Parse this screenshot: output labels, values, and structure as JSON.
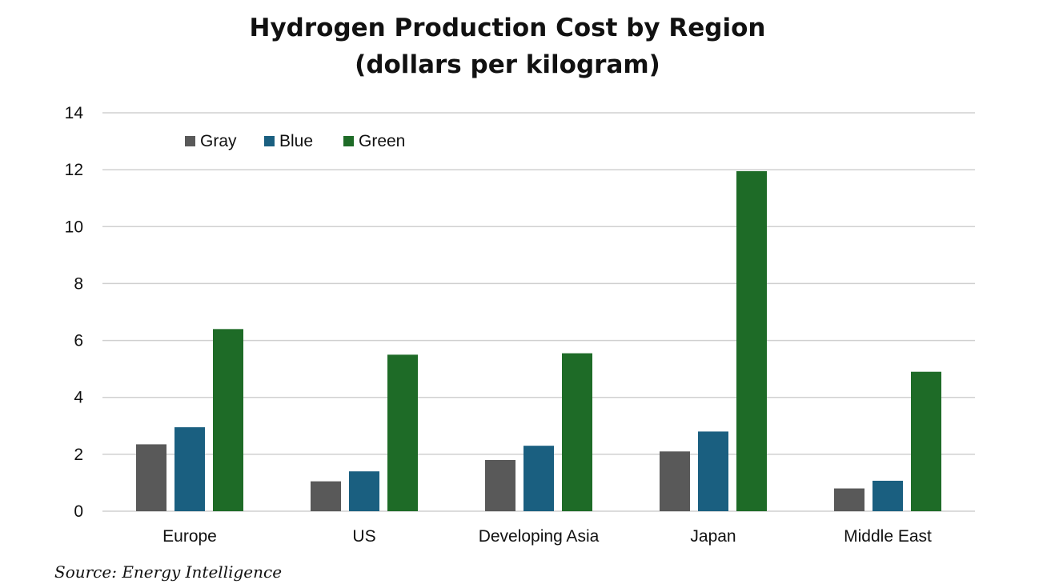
{
  "chart_data": {
    "type": "bar",
    "title": "Hydrogen Production Cost by Region",
    "subtitle": "(dollars per kilogram)",
    "categories": [
      "Europe",
      "US",
      "Developing Asia",
      "Japan",
      "Middle East"
    ],
    "series": [
      {
        "name": "Gray",
        "color": "#595959",
        "values": [
          2.35,
          1.05,
          1.8,
          2.1,
          0.8
        ]
      },
      {
        "name": "Blue",
        "color": "#1a5f80",
        "values": [
          2.95,
          1.4,
          2.3,
          2.8,
          1.07
        ]
      },
      {
        "name": "Green",
        "color": "#1e6b27",
        "values": [
          6.4,
          5.5,
          5.55,
          11.95,
          4.9
        ]
      }
    ],
    "ylim": [
      0,
      14
    ],
    "yticks": [
      0,
      2,
      4,
      6,
      8,
      10,
      12,
      14
    ],
    "grid": true,
    "legend": "top-left",
    "source": "Source: Energy Intelligence"
  }
}
